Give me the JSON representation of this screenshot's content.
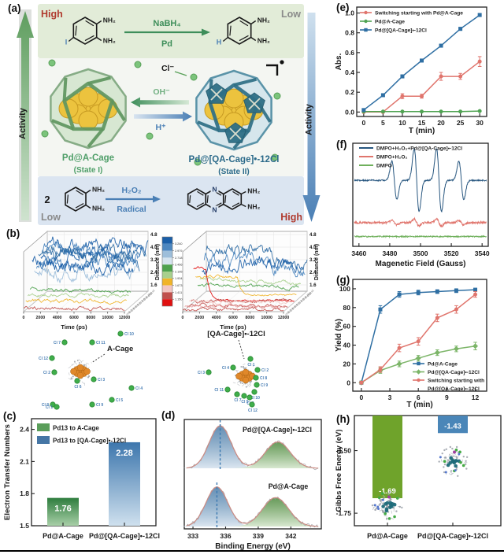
{
  "panels": {
    "a": "(a)",
    "b": "(b)",
    "c": "(c)",
    "d": "(d)",
    "e": "(e)",
    "f": "(f)",
    "g": "(g)",
    "h": "(h)"
  },
  "panel_a": {
    "high_top": "High",
    "low_top": "Low",
    "low_bottom": "Low",
    "high_bottom": "High",
    "activity_left": "Activity",
    "activity_right": "Activity",
    "nh2": "NH₂",
    "iodo": "I",
    "hydro": "H",
    "coef": "2",
    "n_atom": "N",
    "arrow1_top": "NaBH₄",
    "arrow1_bottom": "Pd",
    "arrow2_top": "H₂O₂",
    "arrow2_bottom": "Radical",
    "cl_ion": "Cl⁻",
    "oh_ion": "OH⁻",
    "h_ion": "H⁺",
    "left_cage_name": "Pd@A-Cage",
    "left_cage_state": "(State I)",
    "right_cage_name": "Pd@[QA-Cage]•-12Cl",
    "right_cage_state": "(State II)",
    "colors": {
      "high": "#b03a2e",
      "low": "#8a8a8a",
      "green_text": "#3e8e5a",
      "blue_text": "#4a7fb5",
      "left_name": "#4e9e68",
      "right_name": "#2b6a8a",
      "band_top": "#e2ecd8",
      "band_mid": "#f4f6f2",
      "band_bottom": "#dbe5f1"
    }
  },
  "chart_data": [
    {
      "id": "e",
      "type": "line",
      "xlabel": "T (min)",
      "ylabel": "Abs.",
      "x": [
        0,
        5,
        10,
        15,
        20,
        25,
        30
      ],
      "xticks": [
        0,
        5,
        10,
        15,
        20,
        25,
        30
      ],
      "yticks": [
        0,
        0.2,
        0.4,
        0.6,
        0.8,
        1.0
      ],
      "ytick_labels": [
        "0.0",
        "0.2",
        "0.4",
        "0.6",
        "0.8",
        "1.0"
      ],
      "xlim": [
        -1.8,
        31.8
      ],
      "ylim": [
        -0.045,
        1.06
      ],
      "series": [
        {
          "name": "Switching starting with Pd@A-Cage",
          "color": "#e0756d",
          "marker": "circle",
          "values": [
            0,
            0,
            0.16,
            0.16,
            0.36,
            0.36,
            0.51
          ],
          "errors": [
            0,
            0,
            0.025,
            0.02,
            0.04,
            0.03,
            0.05
          ],
          "legend_lines": [
            "Switching starting with Pd@A-Cage"
          ]
        },
        {
          "name": "Pd@A-Cage",
          "color": "#4fa352",
          "marker": "circle",
          "values": [
            0.005,
            0.005,
            0.005,
            0.005,
            0.005,
            0.005,
            0.01
          ],
          "errors": [
            0,
            0,
            0,
            0,
            0,
            0,
            0
          ],
          "legend_lines": [
            "Pd@A-Cage"
          ]
        },
        {
          "name": "Pd@[QA-Cage]•-12Cl",
          "color": "#2f6fa3",
          "marker": "square",
          "values": [
            0.02,
            0.17,
            0.36,
            0.52,
            0.67,
            0.84,
            0.98
          ],
          "errors": [
            0.012,
            0.012,
            0.015,
            0.015,
            0.015,
            0.015,
            0.015
          ],
          "legend_lines": [
            "Pd@[QA-Cage]•-12Cl"
          ]
        }
      ]
    },
    {
      "id": "f",
      "type": "epr",
      "xlabel": "Magenetic Field (Gauss)",
      "xticks": [
        3460,
        3480,
        3500,
        3520,
        3540
      ],
      "xlim": [
        3456,
        3544
      ],
      "series": [
        {
          "name": "DMPO+H₂O₂+Pd@[QA-Cage]•-12Cl",
          "color": "#27567f",
          "baseline_frac": 0.36,
          "peak_centers": [
            3483,
            3497.5,
            3512,
            3526.5
          ],
          "peak_amps": [
            0.5,
            0.82,
            0.82,
            0.5
          ],
          "noise": 0.8
        },
        {
          "name": "DMPO+H₂O₂",
          "color": "#e0756d",
          "baseline_frac": 0.77,
          "peak_centers": [
            3483,
            3497.5,
            3512,
            3526.5
          ],
          "peak_amps": [
            0.06,
            0.09,
            0.09,
            0.06
          ],
          "noise": 1.3
        },
        {
          "name": "DMPO",
          "color": "#6fb05c",
          "baseline_frac": 0.905,
          "peak_centers": [],
          "peak_amps": [],
          "noise": 0.8
        }
      ]
    },
    {
      "id": "g",
      "type": "line",
      "xlabel": "T (min)",
      "ylabel": "Yield (%)",
      "x": [
        0,
        2,
        4,
        6,
        8,
        10,
        12
      ],
      "xticks": [
        0,
        3,
        6,
        9,
        12
      ],
      "yticks": [
        0,
        20,
        40,
        60,
        80,
        100
      ],
      "ytick_labels": [
        "0",
        "20",
        "40",
        "60",
        "80",
        "100"
      ],
      "xlim": [
        -0.9,
        13.2
      ],
      "ylim": [
        -9,
        110
      ],
      "series": [
        {
          "name": "Pd@A-Cage",
          "color": "#2f6fa3",
          "marker": "square",
          "values": [
            0,
            78,
            94,
            96,
            97,
            98,
            99
          ],
          "errors": [
            1.5,
            4,
            3,
            2.5,
            2,
            2,
            1.5
          ],
          "legend_lines": [
            "Pd@A-Cage"
          ]
        },
        {
          "name": "Pd@[QA-Cage]•-12Cl",
          "color": "#7cb568",
          "marker": "diamond",
          "values": [
            0,
            13,
            20,
            26,
            32,
            36,
            39
          ],
          "errors": [
            1.5,
            3,
            3,
            3,
            3,
            3,
            4
          ],
          "legend_lines": [
            "Pd@[QA-Cage]•-12Cl"
          ]
        },
        {
          "name": "Switching starting with Pd@[QA-Cage]•-12Cl",
          "color": "#e0756d",
          "marker": "circle",
          "values": [
            0,
            14,
            37,
            44,
            69,
            78,
            94
          ],
          "errors": [
            1.5,
            3,
            4,
            4,
            4,
            4,
            3
          ],
          "legend_lines": [
            "Switching starting with",
            "Pd@[QA-Cage]•-12Cl"
          ]
        }
      ]
    },
    {
      "id": "c",
      "type": "bar",
      "ylabel": "Electron Transfer Numbers",
      "categories": [
        "Pd@A-Cage",
        "Pd@[QA-Cage]•-12Cl"
      ],
      "values": [
        1.76,
        2.28
      ],
      "value_labels": [
        "1.76",
        "2.28"
      ],
      "ylim": [
        1.5,
        2.5
      ],
      "yticks": [
        1.5,
        1.8,
        2.1,
        2.4
      ],
      "ytick_labels": [
        "1.5",
        "1.8",
        "2.1",
        "2.4"
      ],
      "legend": [
        {
          "label": "Pd13 to A-Cage",
          "color": "#5a9e5a"
        },
        {
          "label": "Pd13 to [QA-Cage]•-12Cl",
          "color": "#4576a5"
        }
      ],
      "bar_gradients": [
        [
          "#2e7d3e",
          "#a8cfa8"
        ],
        [
          "#3d76ad",
          "#cfe0ee"
        ]
      ]
    },
    {
      "id": "d",
      "type": "xps",
      "xlabel": "Binding Energy (eV)",
      "xticks": [
        333,
        336,
        339,
        342
      ],
      "xlim": [
        332.2,
        344.8
      ],
      "spectra": [
        {
          "name": "Pd@[QA-Cage]•-12Cl",
          "dash_x": 335.5,
          "peaks": [
            {
              "center": 335.5,
              "height": 1.0,
              "width": 1.0,
              "color": "blue"
            },
            {
              "center": 340.8,
              "height": 0.62,
              "width": 1.15,
              "color": "green"
            }
          ]
        },
        {
          "name": "Pd@A-Cage",
          "dash_x": 335.2,
          "peaks": [
            {
              "center": 335.2,
              "height": 0.93,
              "width": 1.0,
              "color": "blue"
            },
            {
              "center": 340.6,
              "height": 0.68,
              "width": 1.2,
              "color": "green"
            }
          ]
        }
      ]
    },
    {
      "id": "h",
      "type": "hanging-bar",
      "ylabel": "Gibbs Free Energy (eV)",
      "categories": [
        "Pd@A-Cage",
        "Pd@[QA-Cage]•-12Cl"
      ],
      "values": [
        -1.69,
        -1.43
      ],
      "value_labels": [
        "-1.69",
        "-1.43"
      ],
      "colors": [
        "#6fa32b",
        "#4a86b8"
      ],
      "ylim": [
        -1.8,
        -1.36
      ],
      "yticks": [
        -1.5,
        -1.75
      ],
      "ytick_labels": [
        "-1.50",
        "-1.75"
      ]
    },
    {
      "id": "b",
      "type": "md-3d",
      "time_label": "Time (ps)",
      "time_ticks": [
        0,
        2000,
        4000,
        6000,
        8000,
        10000,
        12000
      ],
      "z_label": "Distance (nm)",
      "z_ticks": [
        4.8,
        4.0,
        3.2,
        2.4,
        1.6
      ],
      "z_tick_labels": [
        "4.8",
        "4.0",
        "3.2",
        "2.4",
        "1.6"
      ],
      "colorbar": {
        "labels": [
          "3.240",
          "2.979",
          "2.718",
          "2.456",
          "2.195",
          "1.934",
          "1.673",
          "1.411",
          "1.150"
        ],
        "colors": [
          "#1b5fa8",
          "#4d87c0",
          "#9dbeda",
          "#d5e3ee",
          "#4ea24e",
          "#a8d08d",
          "#f0b429",
          "#f2c6c2",
          "#c0504d",
          "#e01010"
        ]
      },
      "cl_labels": [
        "Cl 1",
        "Cl 2",
        "Cl 3",
        "Cl 4",
        "Cl 5",
        "Cl 6",
        "Cl 7",
        "Cl 8",
        "Cl 9",
        "Cl 10",
        "Cl 11",
        "Cl 12"
      ],
      "left_plot": {
        "traces": [
          {
            "c": "#1b5fa8",
            "s": 4.3,
            "e": 4.1
          },
          {
            "c": "#2e6da4",
            "s": 3.9,
            "e": 3.7
          },
          {
            "c": "#4d87c0",
            "s": 4.1,
            "e": 3.5
          },
          {
            "c": "#1b5fa8",
            "s": 3.6,
            "e": 4.0
          },
          {
            "c": "#2e6da4",
            "s": 4.2,
            "e": 3.6
          },
          {
            "c": "#4d87c0",
            "s": 3.3,
            "e": 3.6
          },
          {
            "c": "#9dbeda",
            "s": 3.0,
            "e": 3.2
          },
          {
            "c": "#1b5fa8",
            "s": 3.9,
            "e": 3.4
          },
          {
            "c": "#4ea24e",
            "s": 2.3,
            "e": 2.1
          },
          {
            "c": "#a8d08d",
            "s": 2.0,
            "e": 2.0
          },
          {
            "c": "#f0b429",
            "s": 1.75,
            "e": 1.7
          },
          {
            "c": "#c0504d",
            "s": 1.4,
            "e": 1.38
          }
        ]
      },
      "right_plot": {
        "traces": [
          {
            "c": "#2e6da4",
            "s": 4.0,
            "e": 2.9
          },
          {
            "c": "#4d87c0",
            "s": 3.5,
            "e": 2.5
          },
          {
            "c": "#1b5fa8",
            "s": 2.9,
            "e": 3.3
          },
          {
            "c": "#a8d08d",
            "s": 2.3,
            "e": 2.0
          },
          {
            "c": "#4ea24e",
            "s": 2.1,
            "e": 1.9
          },
          {
            "c": "#f0b429",
            "s": 2.7,
            "e": 1.55,
            "d": 5000
          },
          {
            "c": "#e01010",
            "s": 3.3,
            "e": 1.3,
            "d": 1500
          },
          {
            "c": "#c0504d",
            "s": 1.42,
            "e": 1.36
          },
          {
            "c": "#f2c6c2",
            "s": 1.5,
            "e": 1.45
          },
          {
            "c": "#c0504d",
            "s": 1.3,
            "e": 1.3
          },
          {
            "c": "#e8a0a0",
            "s": 1.46,
            "e": 1.4
          },
          {
            "c": "#c0504d",
            "s": 1.33,
            "e": 1.3
          }
        ]
      },
      "mol_left": {
        "title": "A-Cage",
        "cl": [
          [
            "Cl 10",
            51,
            -48
          ],
          [
            "Cl 7",
            -20,
            -37
          ],
          [
            "Cl 11",
            15,
            -37
          ],
          [
            "Cl 12",
            -36,
            -17
          ],
          [
            "Cl 2",
            -33,
            1
          ],
          [
            "Cl 6",
            -4,
            12
          ],
          [
            "Cl 3",
            17,
            10
          ],
          [
            "Cl 4",
            65,
            21
          ],
          [
            "Cl 8",
            -35,
            42
          ],
          [
            "Cl 1",
            -30,
            45
          ],
          [
            "Cl 9",
            15,
            42
          ],
          [
            "Cl 5",
            40,
            36
          ]
        ]
      },
      "mol_right": {
        "title": "[QA-Cage]•-12Cl",
        "cl": [
          [
            "Cl 1",
            6,
            -22
          ],
          [
            "Cl 2",
            15,
            -8
          ],
          [
            "Cl 3",
            -47,
            -5
          ],
          [
            "Cl 4",
            -16,
            -11
          ],
          [
            "Cl 8",
            13,
            2
          ],
          [
            "Cl 9",
            14,
            11
          ],
          [
            "Cl 10",
            11,
            20
          ],
          [
            "Cl 11",
            -23,
            17
          ],
          [
            "Cl 7",
            -11,
            23
          ],
          [
            "Cl 5",
            -2,
            25
          ],
          [
            "Cl 6",
            5,
            27
          ],
          [
            "Cl 12",
            8,
            36
          ]
        ]
      }
    }
  ]
}
